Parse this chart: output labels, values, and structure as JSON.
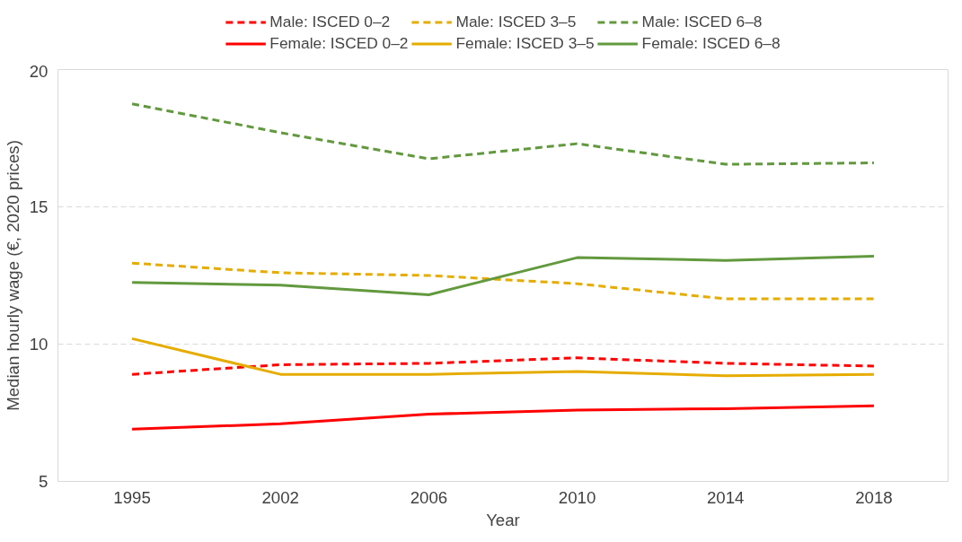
{
  "chart_data": {
    "type": "line",
    "xlabel": "Year",
    "ylabel": "Median hourly wage (€, 2020 prices)",
    "categories": [
      "1995",
      "2002",
      "2006",
      "2010",
      "2014",
      "2018"
    ],
    "ylim": [
      5,
      20
    ],
    "yticks": [
      5,
      10,
      15,
      20
    ],
    "grid": "y",
    "legend": "top",
    "series": [
      {
        "name": "Male: ISCED 0–2",
        "color": "#ff0000",
        "line_style": "dashed",
        "values": [
          8.9,
          9.25,
          9.3,
          9.5,
          9.3,
          9.2
        ]
      },
      {
        "name": "Male: ISCED 3–5",
        "color": "#e6ac00",
        "line_style": "dashed",
        "values": [
          12.95,
          12.6,
          12.5,
          12.2,
          11.65,
          11.65
        ]
      },
      {
        "name": "Male: ISCED 6–8",
        "color": "#62993e",
        "line_style": "dashed",
        "values": [
          18.75,
          17.7,
          16.75,
          17.3,
          16.55,
          16.6
        ]
      },
      {
        "name": "Female: ISCED 0–2",
        "color": "#ff0000",
        "line_style": "solid",
        "values": [
          6.9,
          7.1,
          7.45,
          7.6,
          7.65,
          7.75
        ]
      },
      {
        "name": "Female: ISCED 3–5",
        "color": "#e6ac00",
        "line_style": "solid",
        "values": [
          10.2,
          8.9,
          8.9,
          9.0,
          8.85,
          8.9
        ]
      },
      {
        "name": "Female: ISCED 6–8",
        "color": "#62993e",
        "line_style": "solid",
        "values": [
          12.25,
          12.15,
          11.8,
          13.15,
          13.05,
          13.2
        ]
      }
    ]
  }
}
